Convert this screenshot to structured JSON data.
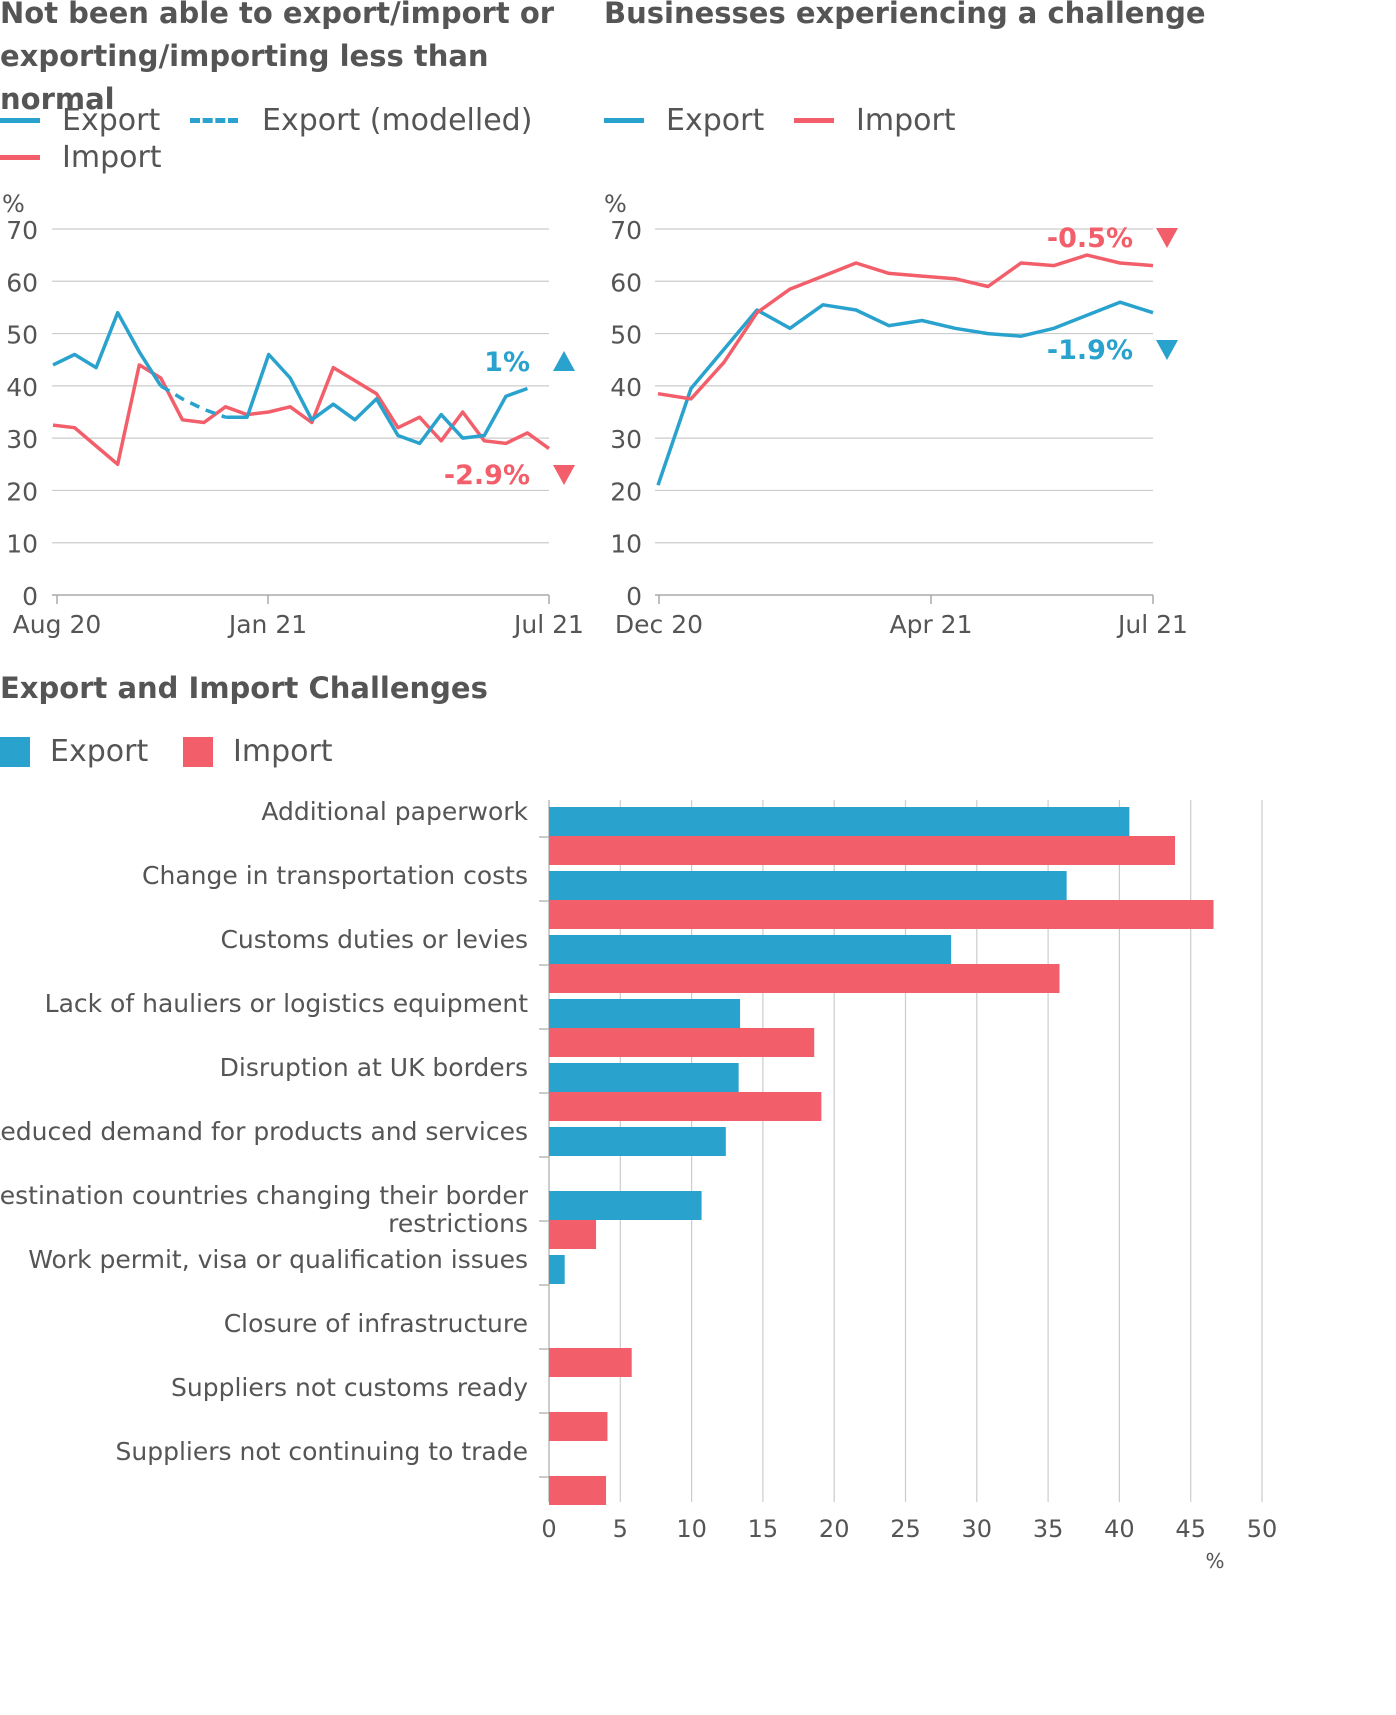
{
  "colors": {
    "export": "#29a2cd",
    "import": "#f25f6b",
    "text": "#555555",
    "grid": "#cccccc",
    "axis": "#aaaaaa"
  },
  "chart_data": [
    {
      "type": "line",
      "title": "Not been able to export/import or exporting/importing less than normal",
      "ylabel": "%",
      "ylim": [
        0,
        70
      ],
      "yticks": [
        0,
        10,
        20,
        30,
        40,
        50,
        60,
        70
      ],
      "x_tick_labels": [
        "Aug 20",
        "Jan 21",
        "Jul 21"
      ],
      "legend": [
        "Export",
        "Export (modelled)",
        "Import"
      ],
      "series": [
        {
          "name": "Export",
          "style": "solid",
          "segments": [
            [
              44,
              46,
              43.5,
              54,
              46.5,
              40
            ],
            [
              34,
              34,
              46,
              41.5,
              33.5,
              36.5,
              33.5,
              37.5,
              30.5,
              29,
              34.5,
              30,
              30.5,
              38,
              39.5
            ]
          ]
        },
        {
          "name": "Export (modelled)",
          "style": "dashed",
          "values": [
            40,
            37.5,
            35.5,
            34
          ]
        },
        {
          "name": "Import",
          "style": "solid",
          "values": [
            32.5,
            32,
            28.5,
            25,
            44,
            41.5,
            33.5,
            33,
            36,
            34.5,
            35,
            36,
            33,
            43.5,
            41,
            38.5,
            32,
            34,
            29.5,
            35,
            29.5,
            29,
            31,
            28
          ]
        }
      ],
      "annotations": [
        {
          "series": "Export",
          "text": "1%",
          "direction": "up"
        },
        {
          "series": "Import",
          "text": "-2.9%",
          "direction": "down"
        }
      ]
    },
    {
      "type": "line",
      "title": "Businesses experiencing a challenge",
      "ylabel": "%",
      "ylim": [
        0,
        70
      ],
      "yticks": [
        0,
        10,
        20,
        30,
        40,
        50,
        60,
        70
      ],
      "x_tick_labels": [
        "Dec 20",
        "Apr 21",
        "Jul 21"
      ],
      "legend": [
        "Export",
        "Import"
      ],
      "series": [
        {
          "name": "Export",
          "values": [
            21,
            39.5,
            47,
            54.5,
            51,
            55.5,
            54.5,
            51.5,
            52.5,
            51,
            50,
            49.5,
            51,
            53.5,
            56,
            54
          ]
        },
        {
          "name": "Import",
          "values": [
            38.5,
            37.5,
            44.5,
            54,
            58.5,
            61,
            63.5,
            61.5,
            61,
            60.5,
            59,
            63.5,
            63,
            65,
            63.5,
            63
          ]
        }
      ],
      "annotations": [
        {
          "series": "Import",
          "text": "-0.5%",
          "direction": "down"
        },
        {
          "series": "Export",
          "text": "-1.9%",
          "direction": "down"
        }
      ]
    },
    {
      "type": "bar",
      "orientation": "horizontal",
      "title": "Export and Import Challenges",
      "xlabel": "%",
      "xlim": [
        0,
        50
      ],
      "xticks": [
        0,
        5,
        10,
        15,
        20,
        25,
        30,
        35,
        40,
        45,
        50
      ],
      "legend": [
        "Export",
        "Import"
      ],
      "categories": [
        "Additional paperwork",
        "Change in transportation costs",
        "Customs duties or levies",
        "Lack of hauliers or logistics equipment",
        "Disruption at UK borders",
        "Reduced demand for products and services",
        "Destination countries changing their border restrictions",
        "Work permit, visa or qualification issues",
        "Closure of infrastructure",
        "Suppliers not customs ready",
        "Suppliers not continuing to trade"
      ],
      "series": [
        {
          "name": "Export",
          "values": [
            40.7,
            36.3,
            28.2,
            13.4,
            13.3,
            12.4,
            10.7,
            1.1,
            null,
            null,
            null
          ]
        },
        {
          "name": "Import",
          "values": [
            43.9,
            46.6,
            35.8,
            18.6,
            19.1,
            null,
            3.3,
            null,
            5.8,
            4.1,
            4.0
          ]
        }
      ]
    }
  ]
}
